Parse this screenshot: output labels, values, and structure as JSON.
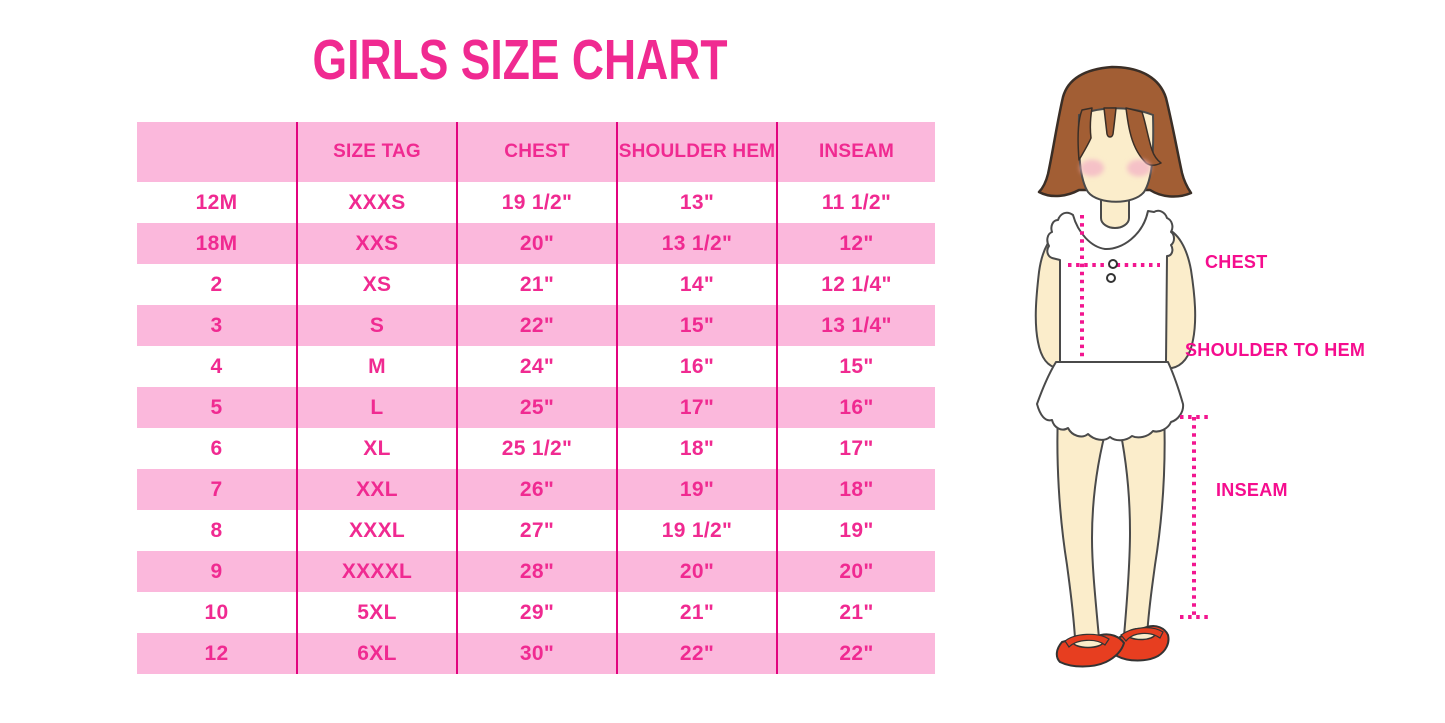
{
  "title": "GIRLS SIZE CHART",
  "chart_data": {
    "type": "table",
    "title": "GIRLS SIZE CHART",
    "columns": [
      "",
      "SIZE TAG",
      "CHEST",
      "SHOULDER HEM",
      "INSEAM"
    ],
    "rows": [
      [
        "12M",
        "XXXS",
        "19 1/2\"",
        "13\"",
        "11 1/2\""
      ],
      [
        "18M",
        "XXS",
        "20\"",
        "13 1/2\"",
        "12\""
      ],
      [
        "2",
        "XS",
        "21\"",
        "14\"",
        "12 1/4\""
      ],
      [
        "3",
        "S",
        "22\"",
        "15\"",
        "13 1/4\""
      ],
      [
        "4",
        "M",
        "24\"",
        "16\"",
        "15\""
      ],
      [
        "5",
        "L",
        "25\"",
        "17\"",
        "16\""
      ],
      [
        "6",
        "XL",
        "25 1/2\"",
        "18\"",
        "17\""
      ],
      [
        "7",
        "XXL",
        "26\"",
        "19\"",
        "18\""
      ],
      [
        "8",
        "XXXL",
        "27\"",
        "19 1/2\"",
        "19\""
      ],
      [
        "9",
        "XXXXL",
        "28\"",
        "20\"",
        "20\""
      ],
      [
        "10",
        "5XL",
        "29\"",
        "21\"",
        "21\""
      ],
      [
        "12",
        "6XL",
        "30\"",
        "22\"",
        "22\""
      ]
    ],
    "row_shading": "alternating pink/white starting white under pink header",
    "legend_position": "none",
    "grid": "vertical magenta dividers only"
  },
  "diagram": {
    "chest_label": "CHEST",
    "shoulder_to_hem_label": "SHOULDER TO HEM",
    "inseam_label": "INSEAM"
  },
  "colors": {
    "title_pink": "#F02A91",
    "row_pink": "#FBB8DC",
    "divider_magenta": "#E2047F",
    "table_text_pink": "#F02A91",
    "label_magenta": "#F50D8E",
    "dotted_line_pink": "#F21690",
    "hair_brown": "#A25E34",
    "skin_cream": "#FBEDCB",
    "blush_pink": "#F4B6C6",
    "shoe_red": "#E73E20"
  }
}
